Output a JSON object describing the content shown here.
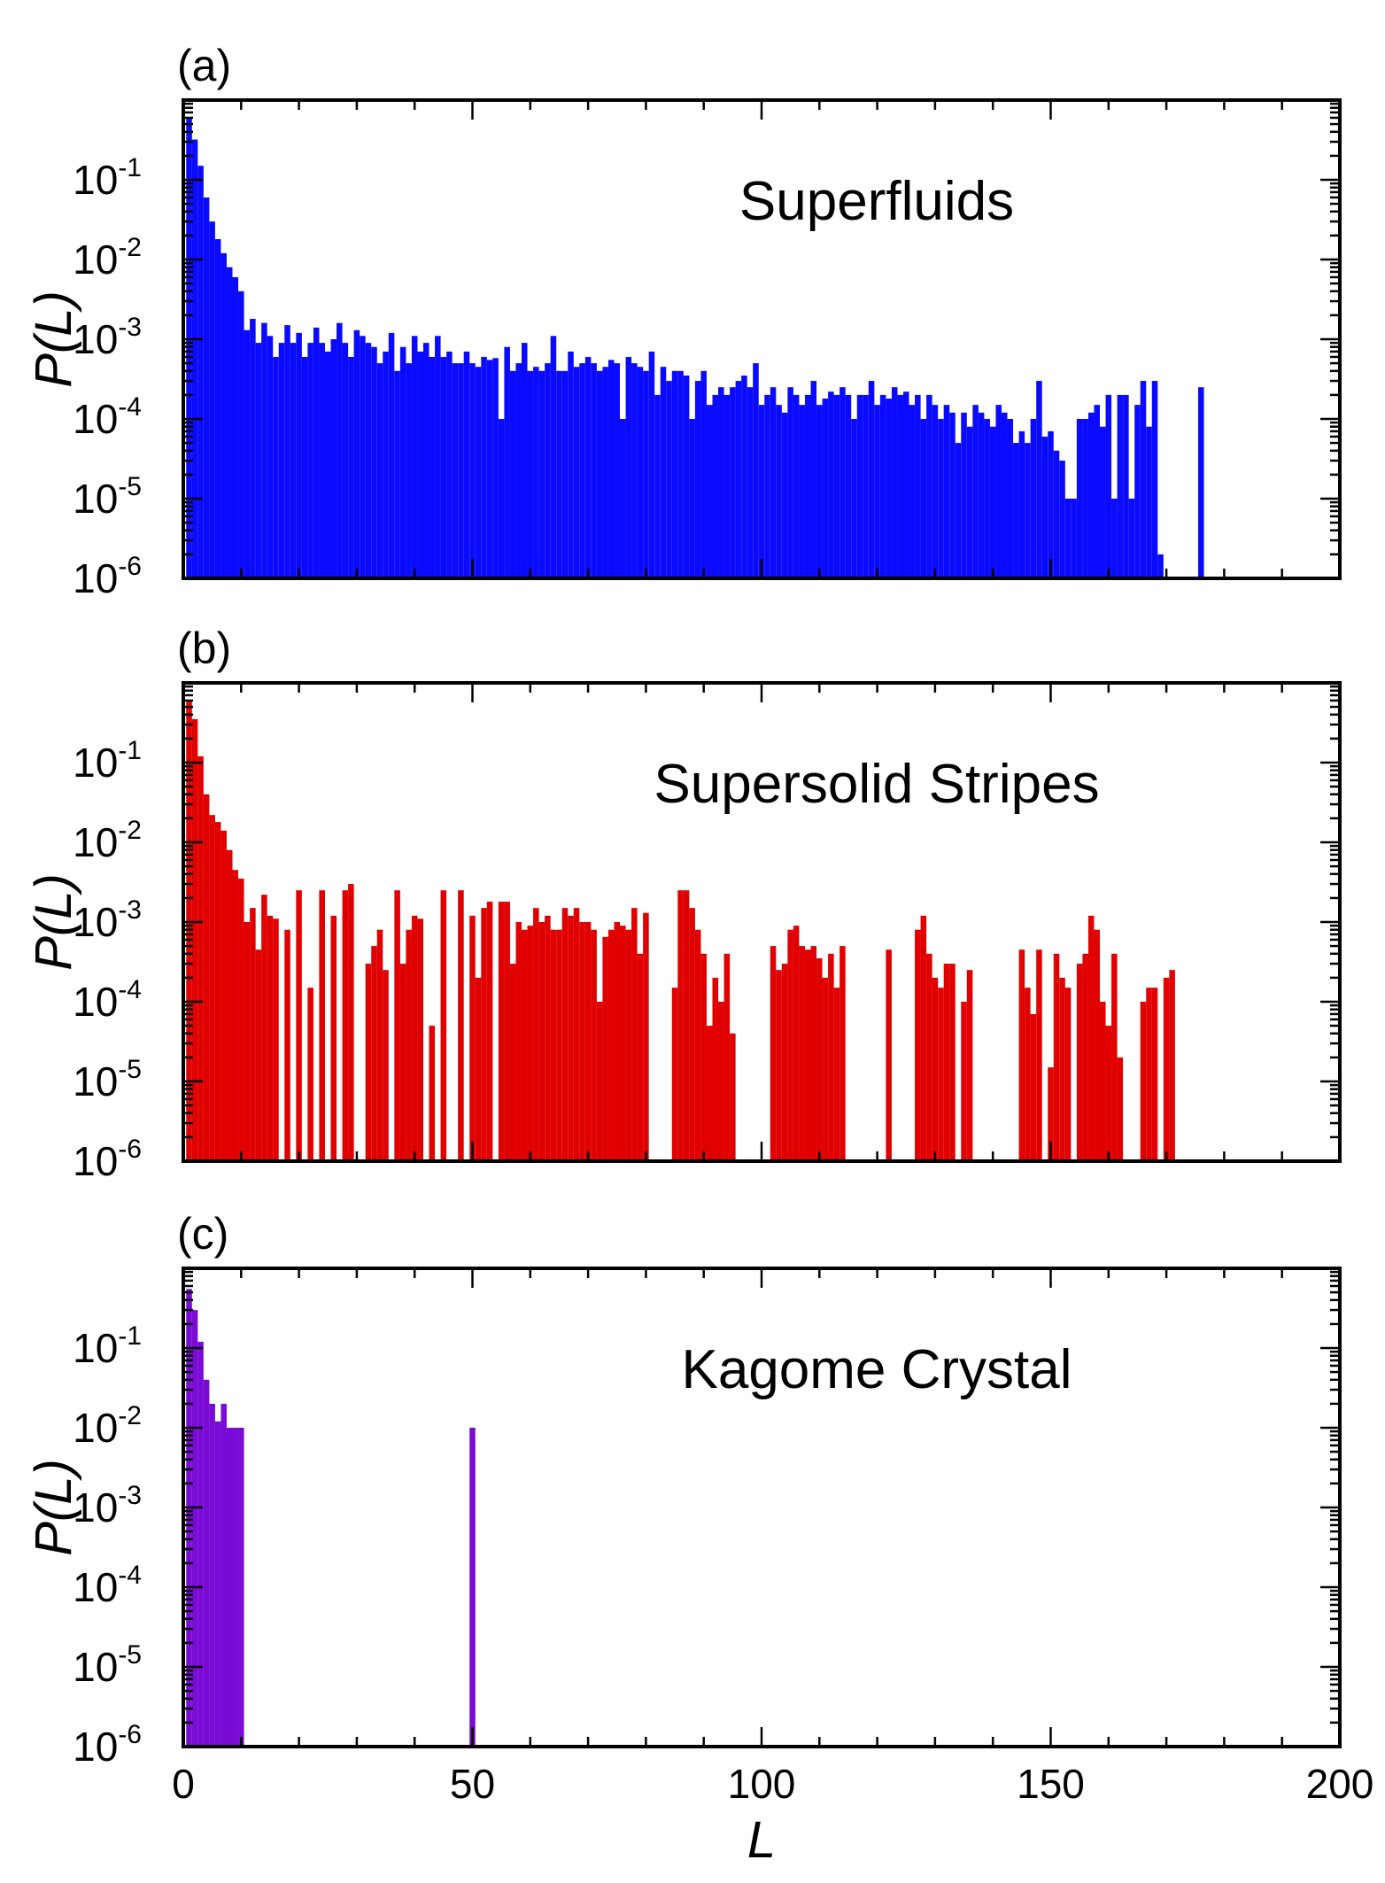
{
  "figure": {
    "xaxis": {
      "label": "L",
      "lim": [
        0,
        200
      ],
      "ticks": [
        0,
        50,
        100,
        150,
        200
      ],
      "tick_labels": [
        "0",
        "50",
        "100",
        "150",
        "200"
      ]
    }
  },
  "chart_data": [
    {
      "type": "bar",
      "panel": "(a)",
      "annotation": "Superfluids",
      "title": "",
      "xlabel": "",
      "ylabel": "P(L)",
      "yscale": "log",
      "ylim": [
        1e-06,
        1
      ],
      "yticks": [
        {
          "base": "10",
          "exp": "-1"
        },
        {
          "base": "10",
          "exp": "-2"
        },
        {
          "base": "10",
          "exp": "-3"
        },
        {
          "base": "10",
          "exp": "-4"
        },
        {
          "base": "10",
          "exp": "-5"
        },
        {
          "base": "10",
          "exp": "-6"
        }
      ],
      "color": "#0a0aff",
      "points": [
        [
          1,
          0.6
        ],
        [
          2,
          0.32
        ],
        [
          3,
          0.15
        ],
        [
          4,
          0.06
        ],
        [
          5,
          0.03
        ],
        [
          6,
          0.018
        ],
        [
          7,
          0.012
        ],
        [
          8,
          0.008
        ],
        [
          9,
          0.006
        ],
        [
          10,
          0.004
        ],
        [
          11,
          0.0013
        ],
        [
          12,
          0.0018
        ],
        [
          13,
          0.0009
        ],
        [
          14,
          0.0016
        ],
        [
          15,
          0.0011
        ],
        [
          16,
          0.0006
        ],
        [
          17,
          0.0009
        ],
        [
          18,
          0.0015
        ],
        [
          19,
          0.0009
        ],
        [
          20,
          0.0012
        ],
        [
          21,
          0.0006
        ],
        [
          22,
          0.0009
        ],
        [
          23,
          0.0014
        ],
        [
          24,
          0.0009
        ],
        [
          25,
          0.0007
        ],
        [
          26,
          0.001
        ],
        [
          27,
          0.0016
        ],
        [
          28,
          0.0009
        ],
        [
          29,
          0.0006
        ],
        [
          30,
          0.0013
        ],
        [
          31,
          0.0011
        ],
        [
          32,
          0.0009
        ],
        [
          33,
          0.0008
        ],
        [
          34,
          0.0005
        ],
        [
          35,
          0.0007
        ],
        [
          36,
          0.0012
        ],
        [
          37,
          0.0004
        ],
        [
          38,
          0.0008
        ],
        [
          39,
          0.0005
        ],
        [
          40,
          0.0011
        ],
        [
          41,
          0.0007
        ],
        [
          42,
          0.0009
        ],
        [
          43,
          0.0006
        ],
        [
          44,
          0.0011
        ],
        [
          45,
          0.0006
        ],
        [
          46,
          0.0007
        ],
        [
          47,
          0.0005
        ],
        [
          48,
          0.0005
        ],
        [
          49,
          0.0007
        ],
        [
          50,
          0.0005
        ],
        [
          51,
          0.00045
        ],
        [
          52,
          0.0006
        ],
        [
          53,
          0.00055
        ],
        [
          54,
          0.00058
        ],
        [
          55,
          0.0001
        ],
        [
          56,
          0.0008
        ],
        [
          57,
          0.0004
        ],
        [
          58,
          0.0005
        ],
        [
          59,
          0.0009
        ],
        [
          60,
          0.0004
        ],
        [
          61,
          0.00045
        ],
        [
          62,
          0.0004
        ],
        [
          63,
          0.0005
        ],
        [
          64,
          0.0011
        ],
        [
          65,
          0.0004
        ],
        [
          66,
          0.0004
        ],
        [
          67,
          0.0007
        ],
        [
          68,
          0.00045
        ],
        [
          69,
          0.0005
        ],
        [
          70,
          0.0006
        ],
        [
          71,
          0.0005
        ],
        [
          72,
          0.0004
        ],
        [
          73,
          0.00045
        ],
        [
          74,
          0.00055
        ],
        [
          75,
          0.0005
        ],
        [
          76,
          0.0001
        ],
        [
          77,
          0.0006
        ],
        [
          78,
          0.0005
        ],
        [
          79,
          0.00045
        ],
        [
          80,
          0.0004
        ],
        [
          81,
          0.0007
        ],
        [
          82,
          0.0002
        ],
        [
          83,
          0.00045
        ],
        [
          84,
          0.0003
        ],
        [
          85,
          0.0004
        ],
        [
          86,
          0.0004
        ],
        [
          87,
          0.00035
        ],
        [
          88,
          0.0001
        ],
        [
          89,
          0.0003
        ],
        [
          90,
          0.0004
        ],
        [
          91,
          0.00015
        ],
        [
          92,
          0.0002
        ],
        [
          93,
          0.00025
        ],
        [
          94,
          0.0002
        ],
        [
          95,
          0.00025
        ],
        [
          96,
          0.0003
        ],
        [
          97,
          0.00035
        ],
        [
          98,
          0.00025
        ],
        [
          99,
          0.0005
        ],
        [
          100,
          0.00015
        ],
        [
          101,
          0.0002
        ],
        [
          102,
          0.00025
        ],
        [
          103,
          0.00015
        ],
        [
          104,
          0.00012
        ],
        [
          105,
          0.00025
        ],
        [
          106,
          0.0002
        ],
        [
          107,
          0.00015
        ],
        [
          108,
          0.0002
        ],
        [
          109,
          0.0003
        ],
        [
          110,
          0.00015
        ],
        [
          111,
          0.00018
        ],
        [
          112,
          0.00022
        ],
        [
          113,
          0.0002
        ],
        [
          114,
          0.00025
        ],
        [
          115,
          0.0002
        ],
        [
          116,
          0.0001
        ],
        [
          117,
          0.0002
        ],
        [
          118,
          0.0002
        ],
        [
          119,
          0.0003
        ],
        [
          120,
          0.00015
        ],
        [
          121,
          0.0002
        ],
        [
          122,
          0.00018
        ],
        [
          123,
          0.00025
        ],
        [
          124,
          0.0002
        ],
        [
          125,
          0.00022
        ],
        [
          126,
          0.00015
        ],
        [
          127,
          0.0002
        ],
        [
          128,
          0.0001
        ],
        [
          129,
          0.0002
        ],
        [
          130,
          0.00015
        ],
        [
          131,
          0.0001
        ],
        [
          132,
          0.00015
        ],
        [
          133,
          0.00012
        ],
        [
          134,
          5e-05
        ],
        [
          135,
          0.00012
        ],
        [
          136,
          8e-05
        ],
        [
          137,
          0.00015
        ],
        [
          138,
          0.00012
        ],
        [
          139,
          0.0001
        ],
        [
          140,
          8e-05
        ],
        [
          141,
          0.00015
        ],
        [
          142,
          0.00012
        ],
        [
          143,
          0.0001
        ],
        [
          144,
          5e-05
        ],
        [
          145,
          7e-05
        ],
        [
          146,
          5e-05
        ],
        [
          147,
          0.0001
        ],
        [
          148,
          0.0003
        ],
        [
          149,
          6e-05
        ],
        [
          150,
          7e-05
        ],
        [
          151,
          4e-05
        ],
        [
          152,
          3e-05
        ],
        [
          153,
          1e-05
        ],
        [
          154,
          1e-05
        ],
        [
          155,
          0.0001
        ],
        [
          156,
          0.0001
        ],
        [
          157,
          0.00012
        ],
        [
          158,
          0.00015
        ],
        [
          159,
          8e-05
        ],
        [
          160,
          0.0002
        ],
        [
          161,
          1e-05
        ],
        [
          162,
          0.0002
        ],
        [
          163,
          0.0002
        ],
        [
          164,
          1e-05
        ],
        [
          165,
          0.00015
        ],
        [
          166,
          0.0003
        ],
        [
          167,
          8e-05
        ],
        [
          168,
          0.0003
        ],
        [
          169,
          2e-06
        ],
        [
          176,
          0.00025
        ]
      ]
    },
    {
      "type": "bar",
      "panel": "(b)",
      "annotation": "Supersolid Stripes",
      "title": "",
      "xlabel": "",
      "ylabel": "P(L)",
      "yscale": "log",
      "ylim": [
        1e-06,
        1
      ],
      "yticks": [
        {
          "base": "10",
          "exp": "-1"
        },
        {
          "base": "10",
          "exp": "-2"
        },
        {
          "base": "10",
          "exp": "-3"
        },
        {
          "base": "10",
          "exp": "-4"
        },
        {
          "base": "10",
          "exp": "-5"
        },
        {
          "base": "10",
          "exp": "-6"
        }
      ],
      "color": "#e00000",
      "points": [
        [
          1,
          0.6
        ],
        [
          2,
          0.35
        ],
        [
          3,
          0.12
        ],
        [
          4,
          0.04
        ],
        [
          5,
          0.022
        ],
        [
          6,
          0.018
        ],
        [
          7,
          0.014
        ],
        [
          8,
          0.008
        ],
        [
          9,
          0.0045
        ],
        [
          10,
          0.0035
        ],
        [
          11,
          0.001
        ],
        [
          12,
          0.0015
        ],
        [
          13,
          0.00045
        ],
        [
          14,
          0.0022
        ],
        [
          15,
          0.0012
        ],
        [
          16,
          0.0011
        ],
        [
          18,
          0.0008
        ],
        [
          20,
          0.0025
        ],
        [
          22,
          0.00015
        ],
        [
          24,
          0.0025
        ],
        [
          26,
          0.0012
        ],
        [
          28,
          0.0025
        ],
        [
          29,
          0.003
        ],
        [
          32,
          0.0003
        ],
        [
          33,
          0.0005
        ],
        [
          34,
          0.0008
        ],
        [
          35,
          0.00025
        ],
        [
          37,
          0.0025
        ],
        [
          38,
          0.0003
        ],
        [
          39,
          0.0008
        ],
        [
          40,
          0.0012
        ],
        [
          41,
          0.0011
        ],
        [
          43,
          5e-05
        ],
        [
          45,
          0.0025
        ],
        [
          48,
          0.0025
        ],
        [
          50,
          0.0012
        ],
        [
          51,
          0.0002
        ],
        [
          52,
          0.0015
        ],
        [
          53,
          0.0018
        ],
        [
          55,
          0.0018
        ],
        [
          56,
          0.0018
        ],
        [
          57,
          0.0003
        ],
        [
          58,
          0.001
        ],
        [
          59,
          0.0008
        ],
        [
          60,
          0.0009
        ],
        [
          61,
          0.0015
        ],
        [
          62,
          0.001
        ],
        [
          63,
          0.0012
        ],
        [
          64,
          0.0008
        ],
        [
          65,
          0.0008
        ],
        [
          66,
          0.0015
        ],
        [
          67,
          0.0012
        ],
        [
          68,
          0.0015
        ],
        [
          69,
          0.001
        ],
        [
          70,
          0.001
        ],
        [
          71,
          0.0008
        ],
        [
          72,
          0.0001
        ],
        [
          73,
          0.00065
        ],
        [
          74,
          0.0008
        ],
        [
          75,
          0.001
        ],
        [
          76,
          0.0009
        ],
        [
          77,
          0.0008
        ],
        [
          78,
          0.0015
        ],
        [
          79,
          0.0004
        ],
        [
          80,
          0.0013
        ],
        [
          85,
          0.00015
        ],
        [
          86,
          0.0025
        ],
        [
          87,
          0.0025
        ],
        [
          88,
          0.0015
        ],
        [
          89,
          0.0008
        ],
        [
          90,
          0.0004
        ],
        [
          91,
          5e-05
        ],
        [
          92,
          0.0002
        ],
        [
          93,
          0.0001
        ],
        [
          94,
          0.0004
        ],
        [
          95,
          4e-05
        ],
        [
          102,
          0.0005
        ],
        [
          103,
          0.00025
        ],
        [
          104,
          0.0003
        ],
        [
          105,
          0.0008
        ],
        [
          106,
          0.0009
        ],
        [
          107,
          0.0005
        ],
        [
          108,
          0.00045
        ],
        [
          109,
          0.0005
        ],
        [
          110,
          0.00035
        ],
        [
          111,
          0.0002
        ],
        [
          112,
          0.0004
        ],
        [
          113,
          0.00015
        ],
        [
          114,
          0.0005
        ],
        [
          122,
          0.00045
        ],
        [
          127,
          0.0008
        ],
        [
          128,
          0.0012
        ],
        [
          129,
          0.0004
        ],
        [
          130,
          0.0002
        ],
        [
          131,
          0.00015
        ],
        [
          132,
          0.0003
        ],
        [
          133,
          0.0003
        ],
        [
          135,
          0.0001
        ],
        [
          136,
          0.00025
        ],
        [
          145,
          0.00045
        ],
        [
          146,
          0.00015
        ],
        [
          147,
          7e-05
        ],
        [
          148,
          0.00045
        ],
        [
          150,
          1.5e-05
        ],
        [
          151,
          0.0004
        ],
        [
          152,
          0.0002
        ],
        [
          153,
          0.00015
        ],
        [
          155,
          0.0003
        ],
        [
          156,
          0.0004
        ],
        [
          157,
          0.0012
        ],
        [
          158,
          0.0008
        ],
        [
          159,
          0.0001
        ],
        [
          160,
          5e-05
        ],
        [
          161,
          0.0004
        ],
        [
          162,
          2e-05
        ],
        [
          166,
          0.0001
        ],
        [
          167,
          0.00015
        ],
        [
          168,
          0.00015
        ],
        [
          170,
          0.0002
        ],
        [
          171,
          0.00025
        ]
      ]
    },
    {
      "type": "bar",
      "panel": "(c)",
      "annotation": "Kagome Crystal",
      "title": "",
      "xlabel": "L",
      "ylabel": "P(L)",
      "yscale": "log",
      "ylim": [
        1e-06,
        1
      ],
      "yticks": [
        {
          "base": "10",
          "exp": "-1"
        },
        {
          "base": "10",
          "exp": "-2"
        },
        {
          "base": "10",
          "exp": "-3"
        },
        {
          "base": "10",
          "exp": "-4"
        },
        {
          "base": "10",
          "exp": "-5"
        },
        {
          "base": "10",
          "exp": "-6"
        }
      ],
      "color": "#7a0ad6",
      "points": [
        [
          1,
          0.55
        ],
        [
          2,
          0.3
        ],
        [
          3,
          0.12
        ],
        [
          4,
          0.04
        ],
        [
          5,
          0.02
        ],
        [
          6,
          0.012
        ],
        [
          7,
          0.02
        ],
        [
          8,
          0.01
        ],
        [
          9,
          0.01
        ],
        [
          10,
          0.01
        ],
        [
          50,
          0.01
        ]
      ]
    }
  ]
}
